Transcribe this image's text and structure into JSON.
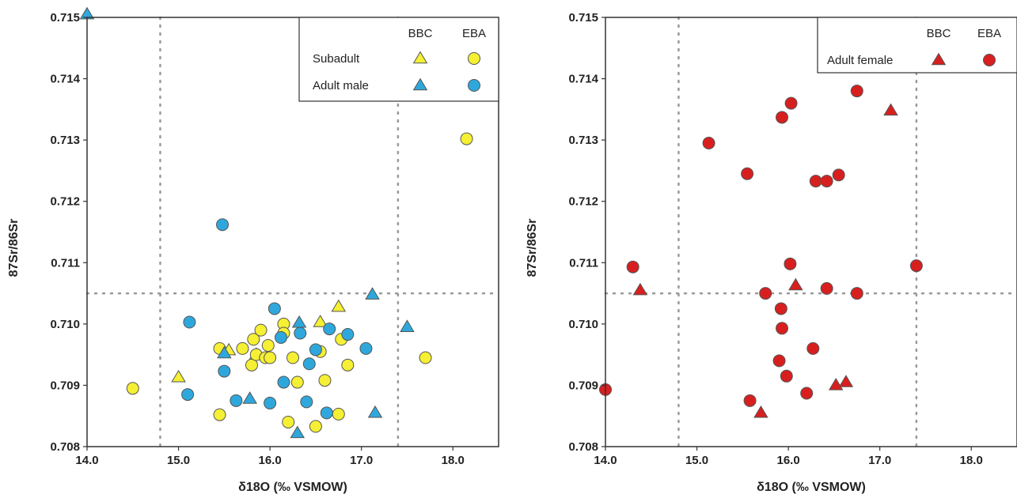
{
  "colors": {
    "subadult": "#f5f033",
    "adult_male": "#2ea8dc",
    "adult_female": "#d81f1f",
    "marker_stroke": "#555555",
    "guide_line": "#999999"
  },
  "chart_data": [
    {
      "type": "scatter",
      "title": "",
      "xlabel": "δ18O (‰ VSMOW)",
      "ylabel": "87Sr/86Sr",
      "xlim": [
        14.0,
        18.5
      ],
      "ylim": [
        0.708,
        0.715
      ],
      "xticks": [
        "14.0",
        "15.0",
        "16.0",
        "17.0",
        "18.0"
      ],
      "yticks": [
        "0.708",
        "0.709",
        "0.710",
        "0.711",
        "0.712",
        "0.713",
        "0.714",
        "0.715"
      ],
      "xtick_values": [
        14.0,
        15.0,
        16.0,
        17.0,
        18.0
      ],
      "ytick_values": [
        0.708,
        0.709,
        0.71,
        0.711,
        0.712,
        0.713,
        0.714,
        0.715
      ],
      "guide_x": [
        14.8,
        17.4
      ],
      "guide_y": [
        0.7105
      ],
      "legend": {
        "position": "top-right",
        "col_headers": [
          "BBC",
          "EBA"
        ],
        "rows": [
          "Subadult",
          "Adult male"
        ]
      },
      "series": [
        {
          "name": "Subadult BBC",
          "marker": "triangle",
          "color_key": "subadult",
          "points": [
            [
              15.0,
              0.70913
            ],
            [
              15.55,
              0.70957
            ],
            [
              15.85,
              0.7095
            ],
            [
              16.55,
              0.71003
            ],
            [
              16.75,
              0.71028
            ]
          ]
        },
        {
          "name": "Subadult EBA",
          "marker": "circle",
          "color_key": "subadult",
          "points": [
            [
              14.5,
              0.70895
            ],
            [
              15.45,
              0.7096
            ],
            [
              15.45,
              0.70852
            ],
            [
              15.7,
              0.7096
            ],
            [
              15.8,
              0.70933
            ],
            [
              15.82,
              0.70975
            ],
            [
              15.85,
              0.7095
            ],
            [
              15.9,
              0.7099
            ],
            [
              15.95,
              0.70945
            ],
            [
              15.98,
              0.70965
            ],
            [
              16.0,
              0.70945
            ],
            [
              16.15,
              0.71
            ],
            [
              16.15,
              0.70985
            ],
            [
              16.2,
              0.7084
            ],
            [
              16.25,
              0.70945
            ],
            [
              16.3,
              0.70905
            ],
            [
              16.5,
              0.70833
            ],
            [
              16.55,
              0.70955
            ],
            [
              16.6,
              0.70908
            ],
            [
              16.75,
              0.70853
            ],
            [
              16.78,
              0.70975
            ],
            [
              16.85,
              0.70933
            ],
            [
              17.7,
              0.70945
            ],
            [
              18.15,
              0.71302
            ]
          ]
        },
        {
          "name": "Adult male BBC",
          "marker": "triangle",
          "color_key": "adult_male",
          "points": [
            [
              14.0,
              0.71505
            ],
            [
              15.5,
              0.70952
            ],
            [
              15.78,
              0.70878
            ],
            [
              16.32,
              0.71002
            ],
            [
              16.3,
              0.70822
            ],
            [
              17.12,
              0.71048
            ],
            [
              17.5,
              0.70995
            ],
            [
              17.15,
              0.70855
            ]
          ]
        },
        {
          "name": "Adult male EBA",
          "marker": "circle",
          "color_key": "adult_male",
          "points": [
            [
              15.1,
              0.70885
            ],
            [
              15.12,
              0.71003
            ],
            [
              15.5,
              0.70923
            ],
            [
              15.48,
              0.71162
            ],
            [
              15.63,
              0.70875
            ],
            [
              16.0,
              0.70871
            ],
            [
              16.05,
              0.71025
            ],
            [
              16.12,
              0.70978
            ],
            [
              16.15,
              0.70905
            ],
            [
              16.33,
              0.70985
            ],
            [
              16.4,
              0.70873
            ],
            [
              16.43,
              0.70935
            ],
            [
              16.5,
              0.70958
            ],
            [
              16.62,
              0.70855
            ],
            [
              16.65,
              0.70992
            ],
            [
              16.85,
              0.70983
            ],
            [
              17.05,
              0.7096
            ]
          ]
        }
      ]
    },
    {
      "type": "scatter",
      "title": "",
      "xlabel": "δ18O (‰ VSMOW)",
      "ylabel": "87Sr/86Sr",
      "xlim": [
        14.0,
        18.5
      ],
      "ylim": [
        0.708,
        0.715
      ],
      "xticks": [
        "14.0",
        "15.0",
        "16.0",
        "17.0",
        "18.0"
      ],
      "yticks": [
        "0.708",
        "0.709",
        "0.710",
        "0.711",
        "0.712",
        "0.713",
        "0.714",
        "0.715"
      ],
      "xtick_values": [
        14.0,
        15.0,
        16.0,
        17.0,
        18.0
      ],
      "ytick_values": [
        0.708,
        0.709,
        0.71,
        0.711,
        0.712,
        0.713,
        0.714,
        0.715
      ],
      "guide_x": [
        14.8,
        17.4
      ],
      "guide_y": [
        0.7105
      ],
      "legend": {
        "position": "top-right",
        "col_headers": [
          "BBC",
          "EBA"
        ],
        "rows": [
          "Adult female"
        ]
      },
      "series": [
        {
          "name": "Adult female BBC",
          "marker": "triangle",
          "color_key": "adult_female",
          "points": [
            [
              14.38,
              0.71055
            ],
            [
              15.7,
              0.70855
            ],
            [
              16.08,
              0.71063
            ],
            [
              16.52,
              0.709
            ],
            [
              16.63,
              0.70905
            ],
            [
              17.12,
              0.71348
            ]
          ]
        },
        {
          "name": "Adult female EBA",
          "marker": "circle",
          "color_key": "adult_female",
          "points": [
            [
              14.0,
              0.70893
            ],
            [
              14.3,
              0.71093
            ],
            [
              15.13,
              0.71295
            ],
            [
              15.55,
              0.71245
            ],
            [
              15.58,
              0.70875
            ],
            [
              15.75,
              0.7105
            ],
            [
              15.9,
              0.7094
            ],
            [
              15.92,
              0.71025
            ],
            [
              15.93,
              0.70993
            ],
            [
              15.93,
              0.71337
            ],
            [
              15.98,
              0.70915
            ],
            [
              16.02,
              0.71098
            ],
            [
              16.03,
              0.7136
            ],
            [
              16.2,
              0.70887
            ],
            [
              16.27,
              0.7096
            ],
            [
              16.3,
              0.71233
            ],
            [
              16.42,
              0.71233
            ],
            [
              16.42,
              0.71058
            ],
            [
              16.55,
              0.71243
            ],
            [
              16.75,
              0.7105
            ],
            [
              16.75,
              0.7138
            ],
            [
              17.4,
              0.71095
            ]
          ]
        }
      ]
    }
  ]
}
